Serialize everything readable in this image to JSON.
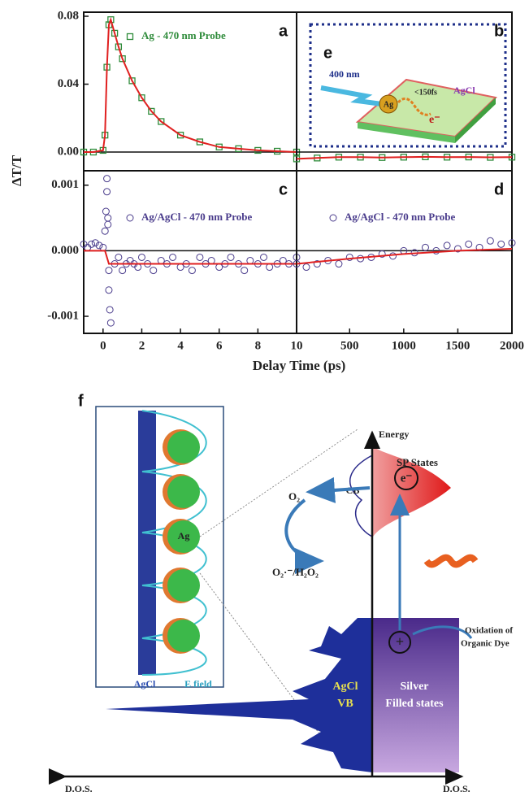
{
  "chart_data": [
    {
      "type": "line",
      "panel": "a",
      "xlim": [
        -1,
        10
      ],
      "ylim": [
        -0.011,
        0.0824
      ],
      "yticks": [
        {
          "value": 0,
          "label": "0.00"
        },
        {
          "value": 0.04,
          "label": "0.04"
        },
        {
          "value": 0.08,
          "label": "0.08"
        }
      ],
      "series": [
        {
          "name": "Ag - 470 nm Probe",
          "color": "#2e8b3a",
          "marker": "square",
          "line_color": "#e02020",
          "x": [
            -1,
            -0.5,
            0,
            0.1,
            0.2,
            0.3,
            0.4,
            0.6,
            0.8,
            1,
            1.5,
            2,
            2.5,
            3,
            4,
            5,
            6,
            7,
            8,
            9,
            10
          ],
          "values": [
            0,
            0,
            0.001,
            0.01,
            0.05,
            0.075,
            0.078,
            0.07,
            0.062,
            0.055,
            0.042,
            0.032,
            0.024,
            0.018,
            0.01,
            0.006,
            0.003,
            0.002,
            0.001,
            0.0005,
            0
          ]
        }
      ]
    },
    {
      "type": "line",
      "panel": "b",
      "xlim": [
        10,
        2000
      ],
      "ylim": [
        -0.011,
        0.0824
      ],
      "series": [
        {
          "color": "#2e8b3a",
          "marker": "square",
          "line_color": "#e02020",
          "x": [
            10,
            200,
            400,
            600,
            800,
            1000,
            1200,
            1400,
            1600,
            1800,
            2000
          ],
          "values": [
            -0.004,
            -0.0035,
            -0.003,
            -0.003,
            -0.0032,
            -0.003,
            -0.0028,
            -0.003,
            -0.0029,
            -0.0031,
            -0.003
          ]
        }
      ]
    },
    {
      "type": "scatter",
      "panel": "c",
      "xlim": [
        -1,
        10
      ],
      "ylim": [
        -0.00126,
        0.00122
      ],
      "xticks": [
        0,
        2,
        4,
        6,
        8,
        10
      ],
      "yticks": [
        0.001,
        {
          "value": 0,
          "label": "0.000"
        },
        -0.001
      ],
      "series": [
        {
          "name": "Ag/AgCl - 470 nm Probe",
          "color": "#4a3c8c",
          "marker": "circle",
          "x": [
            -1,
            -0.8,
            -0.6,
            -0.4,
            -0.2,
            0,
            0.1,
            0.15,
            0.2,
            0.2,
            0.25,
            0.25,
            0.3,
            0.3,
            0.35,
            0.4,
            0.6,
            0.8,
            1,
            1.2,
            1.4,
            1.6,
            1.8,
            2,
            2.3,
            2.6,
            3,
            3.3,
            3.6,
            4,
            4.3,
            4.6,
            5,
            5.3,
            5.6,
            6,
            6.3,
            6.6,
            7,
            7.3,
            7.6,
            8,
            8.3,
            8.6,
            9,
            9.3,
            9.6,
            10
          ],
          "values": [
            0.0001,
            5e-05,
            0.0001,
            0.00012,
            8e-05,
            5e-05,
            0.0003,
            0.0006,
            0.0011,
            0.0009,
            0.0005,
            0.0004,
            -0.0003,
            -0.0006,
            -0.0009,
            -0.0011,
            -0.0002,
            -0.0001,
            -0.0003,
            -0.0002,
            -0.00015,
            -0.0002,
            -0.00025,
            -0.0001,
            -0.0002,
            -0.0003,
            -0.00015,
            -0.0002,
            -0.0001,
            -0.00025,
            -0.0002,
            -0.0003,
            -0.0001,
            -0.0002,
            -0.00015,
            -0.00025,
            -0.0002,
            -0.0001,
            -0.0002,
            -0.0003,
            -0.00015,
            -0.0002,
            -0.0001,
            -0.00025,
            -0.0002,
            -0.00015,
            -0.0002,
            -0.0001
          ]
        },
        {
          "color": "#e02020",
          "marker": "none",
          "line_color": "#e02020",
          "x": [
            -1,
            0,
            0.1,
            0.3,
            10
          ],
          "values": [
            0,
            0,
            0,
            -0.0002,
            -0.0002
          ]
        }
      ]
    },
    {
      "type": "scatter",
      "panel": "d",
      "xlim": [
        10,
        2000
      ],
      "ylim": [
        -0.00126,
        0.00122
      ],
      "xticks": [
        500,
        1000,
        1500,
        2000
      ],
      "series": [
        {
          "name": "Ag/AgCl - 470 nm Probe",
          "color": "#4a3c8c",
          "marker": "circle",
          "x": [
            10,
            100,
            200,
            300,
            400,
            500,
            600,
            700,
            800,
            900,
            1000,
            1100,
            1200,
            1300,
            1400,
            1500,
            1600,
            1700,
            1800,
            1900,
            2000
          ],
          "values": [
            -0.0002,
            -0.00025,
            -0.0002,
            -0.00015,
            -0.0002,
            -0.0001,
            -0.00012,
            -0.0001,
            -5e-05,
            -8e-05,
            0,
            -3e-05,
            5e-05,
            0,
            8e-05,
            3e-05,
            0.0001,
            5e-05,
            0.00015,
            0.0001,
            0.00012
          ]
        },
        {
          "color": "#e02020",
          "marker": "none",
          "line_color": "#e02020",
          "x": [
            10,
            500,
            1000,
            1500,
            2000
          ],
          "values": [
            -0.0002,
            -0.00012,
            -5e-05,
            0,
            3e-05
          ]
        }
      ]
    }
  ],
  "y_label": "ΔT/T",
  "x_label": "Delay Time (ps)",
  "inset": {
    "label": "e",
    "pump": "400 nm",
    "time": "<150fs",
    "agcl": "AgCl",
    "ag": "Ag",
    "electron": "e⁻"
  },
  "diagram": {
    "label": "f",
    "energy": "Energy",
    "sp_states": "SP States",
    "cb": "CB",
    "electron": "e⁻",
    "oxygen": "O₂",
    "products": "O₂·⁻/H₂O₂",
    "ag": "Ag",
    "agcl_bar": "AgCl",
    "e_field": "E field",
    "oxidation_1": "Oxidation of",
    "oxidation_2": "Organic Dye",
    "agcl_vb_1": "AgCl",
    "agcl_vb_2": "VB",
    "silver_1": "Silver",
    "silver_2": "Filled states",
    "hole": "+",
    "dos_left": "D.O.S.",
    "dos_right": "D.O.S."
  }
}
